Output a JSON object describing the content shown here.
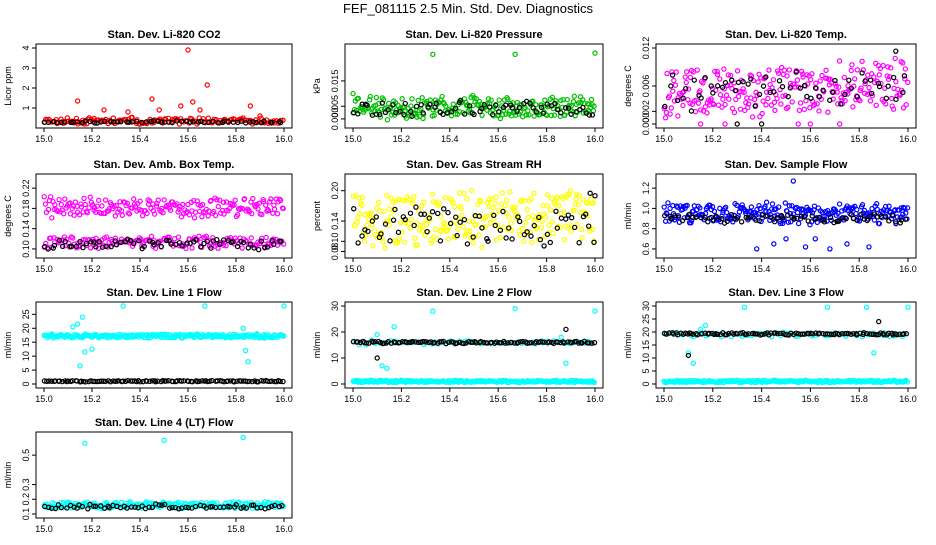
{
  "figure": {
    "title": "FEF_081115  2.5 Min. Std. Dev. Diagnostics"
  },
  "colors": {
    "red": "#ff0000",
    "green": "#00c000",
    "magenta": "#ff00ff",
    "yellow": "#ffff00",
    "blue": "#0000ff",
    "cyan": "#00ffff",
    "black": "#000000"
  },
  "chart_data": [
    {
      "type": "scatter",
      "title": "Stan. Dev. Li-820 CO2",
      "xlabel": "",
      "ylabel": "Licor ppm",
      "xlim": [
        15.0,
        16.0
      ],
      "ylim": [
        0.2,
        4.0
      ],
      "xticks": [
        15.0,
        15.2,
        15.4,
        15.6,
        15.8,
        16.0
      ],
      "xtick_labels": [
        "15.0",
        "15.2",
        "15.4",
        "15.6",
        "15.8",
        "16.0"
      ],
      "yticks": [
        1,
        2,
        3,
        4
      ],
      "ytick_labels": [
        "1",
        "2",
        "3",
        "4"
      ],
      "series": [
        {
          "name": "primary",
          "color": "red",
          "base": 0.35,
          "spread": 0.2,
          "n": 150,
          "seed": 11,
          "outliers": [
            [
              15.14,
              1.35
            ],
            [
              15.25,
              0.9
            ],
            [
              15.35,
              0.8
            ],
            [
              15.45,
              1.45
            ],
            [
              15.48,
              0.9
            ],
            [
              15.57,
              1.1
            ],
            [
              15.6,
              3.9
            ],
            [
              15.62,
              1.3
            ],
            [
              15.65,
              0.9
            ],
            [
              15.68,
              2.15
            ],
            [
              15.86,
              1.1
            ],
            [
              15.9,
              0.6
            ]
          ]
        },
        {
          "name": "secondary",
          "color": "black",
          "base": 0.3,
          "spread": 0.06,
          "n": 60,
          "seed": 12,
          "outliers": []
        }
      ]
    },
    {
      "type": "scatter",
      "title": "Stan. Dev. Li-820 Pressure",
      "xlabel": "",
      "ylabel": "kPa",
      "xlim": [
        15.0,
        16.0
      ],
      "ylim": [
        -0.002,
        0.028
      ],
      "xticks": [
        15.0,
        15.2,
        15.4,
        15.6,
        15.8,
        16.0
      ],
      "xtick_labels": [
        "15.0",
        "15.2",
        "15.4",
        "15.6",
        "15.8",
        "16.0"
      ],
      "yticks": [
        0.0,
        0.005,
        0.015
      ],
      "ytick_labels": [
        "0.000",
        "0.005",
        "0.015"
      ],
      "series": [
        {
          "name": "primary",
          "color": "green",
          "base": 0.0045,
          "spread": 0.005,
          "n": 240,
          "seed": 21,
          "outliers": [
            [
              15.0,
              0.01
            ],
            [
              15.33,
              0.0255
            ],
            [
              15.67,
              0.0255
            ],
            [
              16.0,
              0.026
            ]
          ]
        },
        {
          "name": "secondary",
          "color": "black",
          "base": 0.004,
          "spread": 0.0035,
          "n": 70,
          "seed": 22,
          "outliers": []
        }
      ]
    },
    {
      "type": "scatter",
      "title": "Stan. Dev. Li-820 Temp.",
      "xlabel": "",
      "ylabel": "degrees C",
      "xlim": [
        15.0,
        16.0
      ],
      "ylim": [
        0.0,
        0.012
      ],
      "xticks": [
        15.0,
        15.2,
        15.4,
        15.6,
        15.8,
        16.0
      ],
      "xtick_labels": [
        "15.0",
        "15.2",
        "15.4",
        "15.6",
        "15.8",
        "16.0"
      ],
      "yticks": [
        0.0,
        0.002,
        0.006,
        0.012
      ],
      "ytick_labels": [
        "0.000",
        "0.002",
        "0.006",
        "0.012"
      ],
      "series": [
        {
          "name": "primary",
          "color": "magenta",
          "base": 0.0055,
          "spread": 0.0045,
          "n": 260,
          "seed": 31,
          "trend": 0.0015,
          "outliers": [
            [
              15.15,
              0.0
            ],
            [
              15.25,
              0.0
            ],
            [
              15.55,
              0.0
            ],
            [
              15.6,
              0.0
            ],
            [
              15.72,
              0.0
            ]
          ]
        },
        {
          "name": "secondary",
          "color": "black",
          "base": 0.0055,
          "spread": 0.0035,
          "n": 60,
          "seed": 32,
          "trend": 0.0015,
          "outliers": [
            [
              15.3,
              0.0
            ],
            [
              15.4,
              0.0
            ],
            [
              15.95,
              0.0115
            ]
          ]
        }
      ]
    },
    {
      "type": "scatter",
      "title": "Stan. Dev. Amb. Box Temp.",
      "xlabel": "",
      "ylabel": "degrees C",
      "xlim": [
        15.0,
        16.0
      ],
      "ylim": [
        0.09,
        0.24
      ],
      "xticks": [
        15.0,
        15.2,
        15.4,
        15.6,
        15.8,
        16.0
      ],
      "xtick_labels": [
        "15.0",
        "15.2",
        "15.4",
        "15.6",
        "15.8",
        "16.0"
      ],
      "yticks": [
        0.1,
        0.14,
        0.18,
        0.22
      ],
      "ytick_labels": [
        "0.10",
        "0.14",
        "0.18",
        "0.22"
      ],
      "series": [
        {
          "name": "primary-upper",
          "color": "magenta",
          "base": 0.182,
          "spread": 0.022,
          "n": 200,
          "seed": 41,
          "outliers": []
        },
        {
          "name": "primary-lower",
          "color": "magenta",
          "base": 0.113,
          "spread": 0.014,
          "n": 160,
          "seed": 42,
          "outliers": []
        },
        {
          "name": "secondary",
          "color": "black",
          "base": 0.11,
          "spread": 0.012,
          "n": 70,
          "seed": 43,
          "outliers": []
        }
      ]
    },
    {
      "type": "scatter",
      "title": "Stan. Dev. Gas Stream RH",
      "xlabel": "",
      "ylabel": "percent",
      "xlim": [
        15.0,
        16.0
      ],
      "ylim": [
        0.075,
        0.225
      ],
      "xticks": [
        15.0,
        15.2,
        15.4,
        15.6,
        15.8,
        16.0
      ],
      "xtick_labels": [
        "15.0",
        "15.2",
        "15.4",
        "15.6",
        "15.8",
        "16.0"
      ],
      "yticks": [
        0.08,
        0.1,
        0.14,
        0.2
      ],
      "ytick_labels": [
        "0.08",
        "0.10",
        "0.14",
        "0.20"
      ],
      "series": [
        {
          "name": "primary",
          "color": "yellow",
          "base": 0.145,
          "spread": 0.06,
          "n": 260,
          "seed": 51,
          "outliers": []
        },
        {
          "name": "secondary",
          "color": "black",
          "base": 0.13,
          "spread": 0.045,
          "n": 70,
          "seed": 52,
          "outliers": [
            [
              16.0,
              0.19
            ],
            [
              15.98,
              0.195
            ]
          ]
        }
      ]
    },
    {
      "type": "scatter",
      "title": "Stan. Dev. Sample Flow",
      "xlabel": "",
      "ylabel": "ml/min",
      "xlim": [
        15.0,
        16.0
      ],
      "ylim": [
        0.55,
        1.3
      ],
      "xticks": [
        15.0,
        15.2,
        15.4,
        15.6,
        15.8,
        16.0
      ],
      "xtick_labels": [
        "15.0",
        "15.2",
        "15.4",
        "15.6",
        "15.8",
        "16.0"
      ],
      "yticks": [
        0.6,
        0.8,
        1.0,
        1.2
      ],
      "ytick_labels": [
        "0.6",
        "0.8",
        "1.0",
        "1.2"
      ],
      "series": [
        {
          "name": "primary",
          "color": "blue",
          "base": 0.95,
          "spread": 0.12,
          "n": 260,
          "seed": 61,
          "outliers": [
            [
              15.53,
              1.27
            ],
            [
              15.38,
              0.6
            ],
            [
              15.45,
              0.65
            ],
            [
              15.5,
              0.7
            ],
            [
              15.58,
              0.62
            ],
            [
              15.62,
              0.7
            ],
            [
              15.68,
              0.6
            ],
            [
              15.75,
              0.65
            ],
            [
              15.84,
              0.62
            ]
          ]
        },
        {
          "name": "secondary",
          "color": "black",
          "base": 0.9,
          "spread": 0.05,
          "n": 70,
          "seed": 62,
          "outliers": []
        }
      ]
    },
    {
      "type": "scatter",
      "title": "Stan. Dev. Line 1 Flow",
      "xlabel": "",
      "ylabel": "ml/min",
      "xlim": [
        15.0,
        16.0
      ],
      "ylim": [
        0.0,
        28.0
      ],
      "xticks": [
        15.0,
        15.2,
        15.4,
        15.6,
        15.8,
        16.0
      ],
      "xtick_labels": [
        "15.0",
        "15.2",
        "15.4",
        "15.6",
        "15.8",
        "16.0"
      ],
      "yticks": [
        0,
        5,
        10,
        15,
        20,
        25
      ],
      "ytick_labels": [
        "0",
        "5",
        "10",
        "15",
        "20",
        "25"
      ],
      "series": [
        {
          "name": "primary",
          "color": "cyan",
          "base": 17.2,
          "spread": 0.8,
          "n": 260,
          "seed": 71,
          "outliers": [
            [
              15.12,
              20.5
            ],
            [
              15.14,
              21.5
            ],
            [
              15.16,
              24.0
            ],
            [
              15.17,
              11.5
            ],
            [
              15.2,
              12.5
            ],
            [
              15.15,
              6.5
            ],
            [
              15.33,
              28.0
            ],
            [
              15.67,
              28.0
            ],
            [
              15.83,
              20.0
            ],
            [
              15.84,
              12.0
            ],
            [
              15.85,
              8.0
            ],
            [
              16.0,
              28.0
            ]
          ]
        },
        {
          "name": "secondary",
          "color": "black",
          "base": 1.0,
          "spread": 0.25,
          "n": 110,
          "seed": 72,
          "outliers": []
        }
      ]
    },
    {
      "type": "scatter",
      "title": "Stan. Dev. Line 2 Flow",
      "xlabel": "",
      "ylabel": "ml/min",
      "xlim": [
        15.0,
        16.0
      ],
      "ylim": [
        0.0,
        30.0
      ],
      "xticks": [
        15.0,
        15.2,
        15.4,
        15.6,
        15.8,
        16.0
      ],
      "xtick_labels": [
        "15.0",
        "15.2",
        "15.4",
        "15.6",
        "15.8",
        "16.0"
      ],
      "yticks": [
        0,
        10,
        20,
        30
      ],
      "ytick_labels": [
        "0",
        "10",
        "20",
        "30"
      ],
      "series": [
        {
          "name": "primary-low",
          "color": "cyan",
          "base": 1.0,
          "spread": 0.5,
          "n": 240,
          "seed": 81,
          "outliers": []
        },
        {
          "name": "primary-high",
          "color": "cyan",
          "base": 16.0,
          "spread": 1.0,
          "n": 60,
          "seed": 82,
          "outliers": [
            [
              15.1,
              19.0
            ],
            [
              15.12,
              7.0
            ],
            [
              15.14,
              6.0
            ],
            [
              15.17,
              22.0
            ],
            [
              15.33,
              28.0
            ],
            [
              15.67,
              29.0
            ],
            [
              15.86,
              18.0
            ],
            [
              15.88,
              8.0
            ],
            [
              16.0,
              28.0
            ]
          ]
        },
        {
          "name": "secondary",
          "color": "black",
          "base": 16.0,
          "spread": 0.5,
          "n": 110,
          "seed": 83,
          "outliers": [
            [
              15.1,
              10.0
            ],
            [
              15.88,
              21.0
            ]
          ]
        }
      ]
    },
    {
      "type": "scatter",
      "title": "Stan. Dev. Line 3 Flow",
      "xlabel": "",
      "ylabel": "ml/min",
      "xlim": [
        15.0,
        16.0
      ],
      "ylim": [
        0.0,
        30.0
      ],
      "xticks": [
        15.0,
        15.2,
        15.4,
        15.6,
        15.8,
        16.0
      ],
      "xtick_labels": [
        "15.0",
        "15.2",
        "15.4",
        "15.6",
        "15.8",
        "16.0"
      ],
      "yticks": [
        0,
        5,
        10,
        15,
        20,
        25,
        30
      ],
      "ytick_labels": [
        "0",
        "5",
        "10",
        "15",
        "20",
        "25",
        "30"
      ],
      "series": [
        {
          "name": "primary-low",
          "color": "cyan",
          "base": 1.0,
          "spread": 0.5,
          "n": 240,
          "seed": 91,
          "outliers": []
        },
        {
          "name": "primary-high",
          "color": "cyan",
          "base": 19.0,
          "spread": 1.0,
          "n": 60,
          "seed": 92,
          "outliers": [
            [
              15.1,
              12.0
            ],
            [
              15.12,
              8.0
            ],
            [
              15.15,
              21.0
            ],
            [
              15.17,
              22.5
            ],
            [
              15.33,
              29.5
            ],
            [
              15.67,
              29.5
            ],
            [
              15.83,
              29.5
            ],
            [
              15.86,
              12.0
            ],
            [
              16.0,
              29.5
            ]
          ]
        },
        {
          "name": "secondary",
          "color": "black",
          "base": 19.3,
          "spread": 0.5,
          "n": 110,
          "seed": 93,
          "outliers": [
            [
              15.1,
              11.0
            ],
            [
              15.88,
              24.0
            ]
          ]
        }
      ]
    },
    {
      "type": "scatter",
      "title": "Stan. Dev. Line 4 (LT) Flow",
      "xlabel": "",
      "ylabel": "ml/min",
      "xlim": [
        15.0,
        16.0
      ],
      "ylim": [
        0.1,
        0.63
      ],
      "xticks": [
        15.0,
        15.2,
        15.4,
        15.6,
        15.8,
        16.0
      ],
      "xtick_labels": [
        "15.0",
        "15.2",
        "15.4",
        "15.6",
        "15.8",
        "16.0"
      ],
      "yticks": [
        0.1,
        0.2,
        0.3,
        0.5
      ],
      "ytick_labels": [
        "0.1",
        "0.2",
        "0.3",
        "0.5"
      ],
      "series": [
        {
          "name": "primary",
          "color": "cyan",
          "base": 0.16,
          "spread": 0.025,
          "n": 240,
          "seed": 101,
          "outliers": [
            [
              15.17,
              0.58
            ],
            [
              15.5,
              0.6
            ],
            [
              15.83,
              0.62
            ]
          ]
        },
        {
          "name": "secondary",
          "color": "black",
          "base": 0.15,
          "spread": 0.018,
          "n": 70,
          "seed": 102,
          "outliers": []
        }
      ]
    }
  ]
}
